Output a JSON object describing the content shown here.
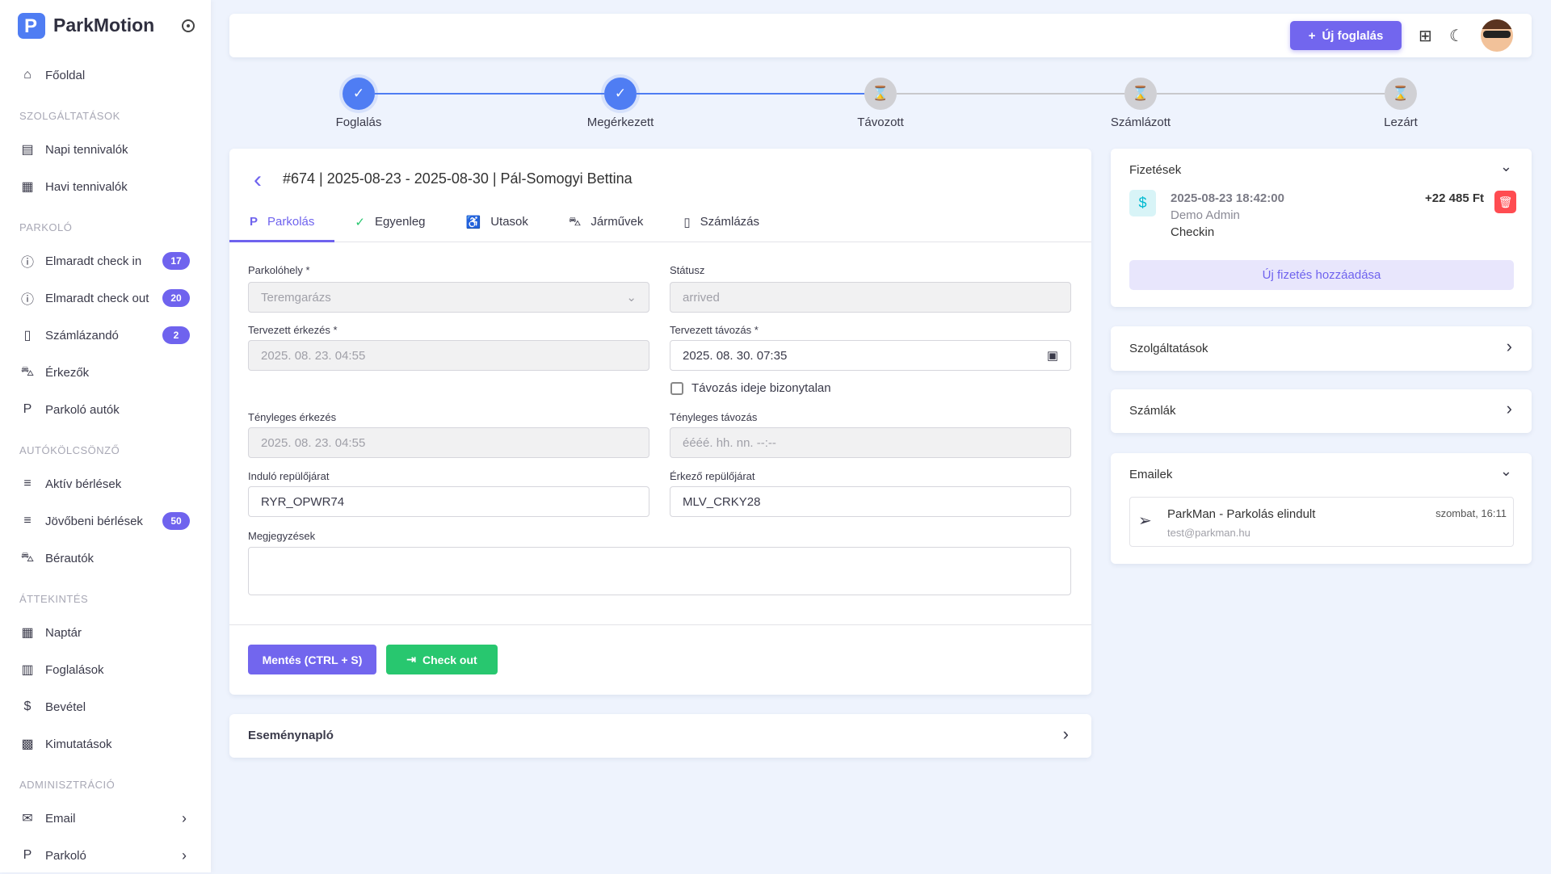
{
  "app": {
    "name": "ParkMotion"
  },
  "sidebar": {
    "items": [
      {
        "type": "item",
        "label": "Főoldal",
        "icon": "home-icon",
        "glyph": "⌂"
      },
      {
        "type": "label",
        "label": "SZOLGÁLTATÁSOK"
      },
      {
        "type": "item",
        "label": "Napi tennivalók",
        "icon": "receipt-icon",
        "glyph": "▤"
      },
      {
        "type": "item",
        "label": "Havi tennivalók",
        "icon": "calendar-icon",
        "glyph": "▦"
      },
      {
        "type": "label",
        "label": "PARKOLÓ"
      },
      {
        "type": "item",
        "label": "Elmaradt check in",
        "icon": "alert-icon",
        "glyph": "ⓘ",
        "badge": "17"
      },
      {
        "type": "item",
        "label": "Elmaradt check out",
        "icon": "alert-icon",
        "glyph": "ⓘ",
        "badge": "20"
      },
      {
        "type": "item",
        "label": "Számlázandó",
        "icon": "invoice-icon",
        "glyph": "▯",
        "badge": "2"
      },
      {
        "type": "item",
        "label": "Érkezők",
        "icon": "car-icon",
        "glyph": "⛍"
      },
      {
        "type": "item",
        "label": "Parkoló autók",
        "icon": "parking-icon",
        "glyph": "P"
      },
      {
        "type": "label",
        "label": "AUTÓKÖLCSÖNZŐ"
      },
      {
        "type": "item",
        "label": "Aktív bérlések",
        "icon": "rental-icon",
        "glyph": "≡"
      },
      {
        "type": "item",
        "label": "Jövőbeni bérlések",
        "icon": "rental-icon",
        "glyph": "≡",
        "badge": "50"
      },
      {
        "type": "item",
        "label": "Bérautók",
        "icon": "car-icon",
        "glyph": "⛍"
      },
      {
        "type": "label",
        "label": "ÁTTEKINTÉS"
      },
      {
        "type": "item",
        "label": "Naptár",
        "icon": "calendar-icon",
        "glyph": "▦"
      },
      {
        "type": "item",
        "label": "Foglalások",
        "icon": "bar-chart-icon",
        "glyph": "▥"
      },
      {
        "type": "item",
        "label": "Bevétel",
        "icon": "dollar-icon",
        "glyph": "$"
      },
      {
        "type": "item",
        "label": "Kimutatások",
        "icon": "dashboard-icon",
        "glyph": "▩"
      },
      {
        "type": "label",
        "label": "ADMINISZTRÁCIÓ"
      },
      {
        "type": "item",
        "label": "Email",
        "icon": "mail-icon",
        "glyph": "✉",
        "chevron": true
      },
      {
        "type": "item",
        "label": "Parkoló",
        "icon": "parking-icon",
        "glyph": "P",
        "chevron": true
      }
    ]
  },
  "topbar": {
    "new_booking": "Új foglalás"
  },
  "stepper": [
    {
      "label": "Foglalás",
      "state": "done"
    },
    {
      "label": "Megérkezett",
      "state": "done"
    },
    {
      "label": "Távozott",
      "state": "pending"
    },
    {
      "label": "Számlázott",
      "state": "pending"
    },
    {
      "label": "Lezárt",
      "state": "pending"
    }
  ],
  "booking": {
    "title": "#674 | 2025-08-23 - 2025-08-30 | Pál-Somogyi Bettina",
    "tabs": [
      {
        "label": "Parkolás",
        "glyph": "P",
        "active": true
      },
      {
        "label": "Egyenleg",
        "glyph": "✓"
      },
      {
        "label": "Utasok",
        "glyph": "♿"
      },
      {
        "label": "Járművek",
        "glyph": "⛍"
      },
      {
        "label": "Számlázás",
        "glyph": "▯"
      }
    ],
    "form": {
      "parking_label": "Parkolóhely *",
      "parking_value": "Teremgarázs",
      "status_label": "Státusz",
      "status_value": "arrived",
      "planned_arrival_label": "Tervezett érkezés *",
      "planned_arrival_value": "2025. 08. 23. 04:55",
      "planned_departure_label": "Tervezett távozás *",
      "planned_departure_value": "2025. 08. 30. 07:35",
      "uncertain_label": "Távozás ideje bizonytalan",
      "actual_arrival_label": "Tényleges érkezés",
      "actual_arrival_value": "2025. 08. 23. 04:55",
      "actual_departure_label": "Tényleges távozás",
      "actual_departure_placeholder": "éééé. hh. nn. --:--",
      "outbound_flight_label": "Induló repülőjárat",
      "outbound_flight_value": "RYR_OPWR74",
      "inbound_flight_label": "Érkező repülőjárat",
      "inbound_flight_value": "MLV_CRKY28",
      "notes_label": "Megjegyzések",
      "notes_value": ""
    },
    "save_label": "Mentés (CTRL + S)",
    "checkout_label": "Check out"
  },
  "event_log": {
    "title": "Eseménynapló"
  },
  "payments": {
    "title": "Fizetések",
    "items": [
      {
        "date": "2025-08-23 18:42:00",
        "user": "Demo Admin",
        "type": "Checkin",
        "amount": "+22 485 Ft"
      }
    ],
    "add_label": "Új fizetés hozzáadása"
  },
  "services": {
    "title": "Szolgáltatások"
  },
  "invoices": {
    "title": "Számlák"
  },
  "emails": {
    "title": "Emailek",
    "items": [
      {
        "subject": "ParkMan - Parkolás elindult",
        "to": "test@parkman.hu",
        "time": "szombat, 16:11"
      }
    ]
  },
  "colors": {
    "accent": "#6f63ee",
    "step_done": "#4f7df3",
    "success": "#28c76f",
    "danger": "#ff4c51"
  }
}
